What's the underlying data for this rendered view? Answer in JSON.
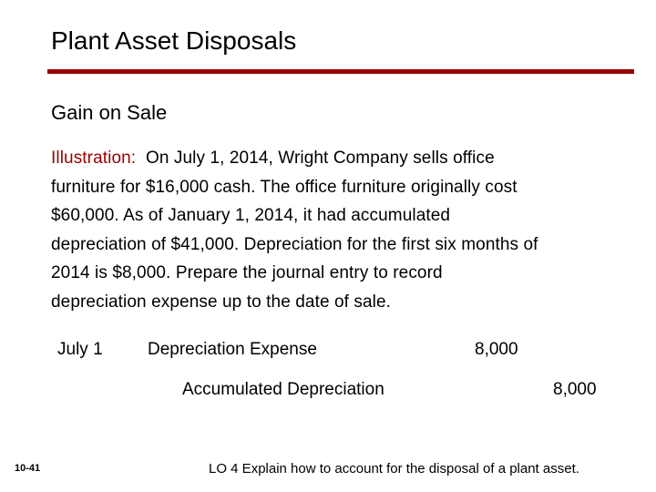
{
  "slide": {
    "title": "Plant Asset Disposals",
    "subtitle": "Gain on Sale",
    "illustration": {
      "label": "Illustration:",
      "lines": [
        "  On July 1, 2014, Wright Company sells office",
        "furniture for $16,000 cash. The office furniture originally cost",
        "$60,000.  As of January 1, 2014, it had accumulated",
        "depreciation of $41,000. Depreciation for the first six months of",
        "2014 is $8,000.  Prepare the journal entry to record",
        "depreciation expense up to the date of sale."
      ]
    },
    "journal_entry": {
      "date": "July 1",
      "debit_account": "Depreciation Expense",
      "debit_amount": "8,000",
      "credit_account": "Accumulated Depreciation",
      "credit_amount": "8,000"
    },
    "footer": {
      "slide_number": "10-41",
      "learning_objective": "LO 4  Explain how to account for the disposal of a plant asset."
    },
    "colors": {
      "accent": "#990000",
      "text": "#000000",
      "background": "#ffffff"
    }
  }
}
